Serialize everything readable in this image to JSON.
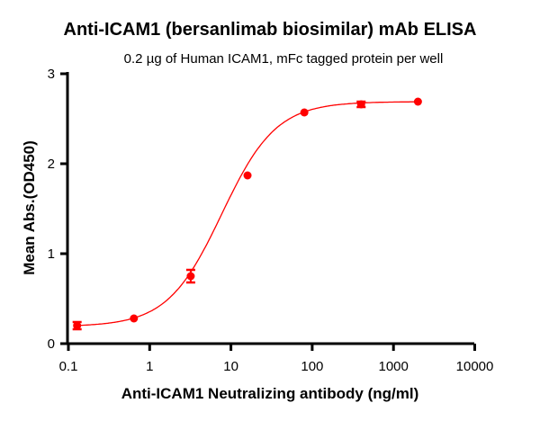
{
  "chart_data": {
    "type": "scatter",
    "title": "Anti-ICAM1 (bersanlimab biosimilar) mAb ELISA",
    "subtitle": "0.2 µg of Human ICAM1, mFc tagged protein per well",
    "xlabel": "Anti-ICAM1 Neutralizing antibody (ng/ml)",
    "ylabel": "Mean Abs.(OD450)",
    "xscale": "log",
    "xlim": [
      0.1,
      10000
    ],
    "ylim": [
      0,
      3
    ],
    "xticks": [
      "0.1",
      "1",
      "10",
      "100",
      "1000",
      "10000"
    ],
    "yticks": [
      "0",
      "1",
      "2",
      "3"
    ],
    "grid": false,
    "color": "#ff0000",
    "series": [
      {
        "x": [
          0.128,
          0.64,
          3.2,
          16,
          80,
          400,
          2000
        ],
        "y": [
          0.2,
          0.28,
          0.75,
          1.87,
          2.57,
          2.66,
          2.69
        ],
        "error": [
          0.04,
          0.01,
          0.07,
          0.01,
          0.01,
          0.03,
          0.01
        ]
      }
    ],
    "fit": {
      "type": "4PL",
      "bottom": 0.19,
      "top": 2.69,
      "ec50": 7.7,
      "hill": 1.3
    }
  }
}
